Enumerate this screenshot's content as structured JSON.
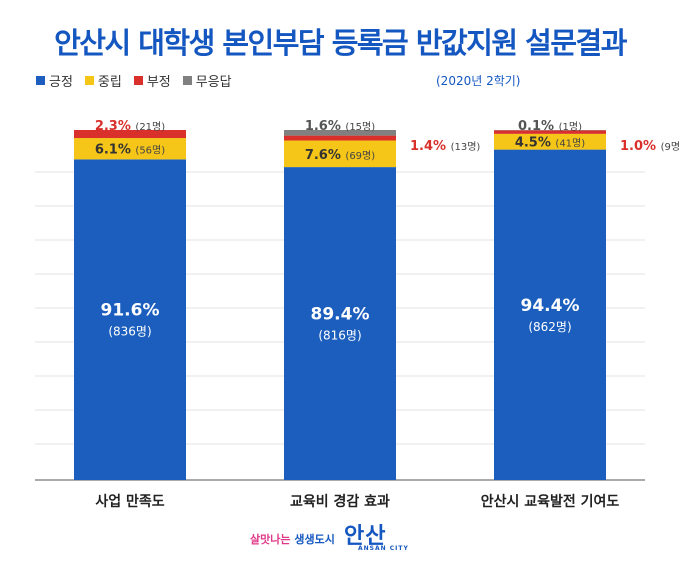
{
  "title": "안산시 대학생 본인부담 등록금 반값지원 설문결과",
  "subtitle": "(2020년 2학기)",
  "colors": {
    "positive": "#1b5ebd",
    "neutral": "#f5c518",
    "negative": "#d9302b",
    "no_response": "#808080",
    "grid": "#e3e3e3",
    "axis": "#555555"
  },
  "chart_data": {
    "type": "bar",
    "stacked": true,
    "categories": [
      "사업 만족도",
      "교육비 경감 효과",
      "안산시 교육발전 기여도"
    ],
    "ylim": [
      0,
      100
    ],
    "grid": true,
    "legend_position": "top-left",
    "series": [
      {
        "name": "긍정",
        "key": "positive",
        "values": [
          91.6,
          89.4,
          94.4
        ],
        "labels": [
          "91.6%",
          "89.4%",
          "94.4%"
        ],
        "counts": [
          "(836명)",
          "(816명)",
          "(862명)"
        ]
      },
      {
        "name": "중립",
        "key": "neutral",
        "values": [
          6.1,
          7.6,
          4.5
        ],
        "labels": [
          "6.1%",
          "7.6%",
          "4.5%"
        ],
        "counts": [
          "(56명)",
          "(69명)",
          "(41명)"
        ]
      },
      {
        "name": "부정",
        "key": "negative",
        "values": [
          2.3,
          1.4,
          1.0
        ],
        "labels": [
          "2.3%",
          "1.4%",
          "1.0%"
        ],
        "counts": [
          "(21명)",
          "(13명)",
          "(9명)"
        ]
      },
      {
        "name": "무응답",
        "key": "no_response",
        "values": [
          0,
          1.6,
          0.1
        ],
        "labels": [
          "",
          "1.6%",
          "0.1%"
        ],
        "counts": [
          "",
          "(15명)",
          "(1명)"
        ]
      }
    ]
  },
  "footer": {
    "slogan_prefix": "살맛나는",
    "slogan_accent": "생생도시",
    "logo_text": "안산",
    "logo_sub": "ANSAN CITY"
  }
}
